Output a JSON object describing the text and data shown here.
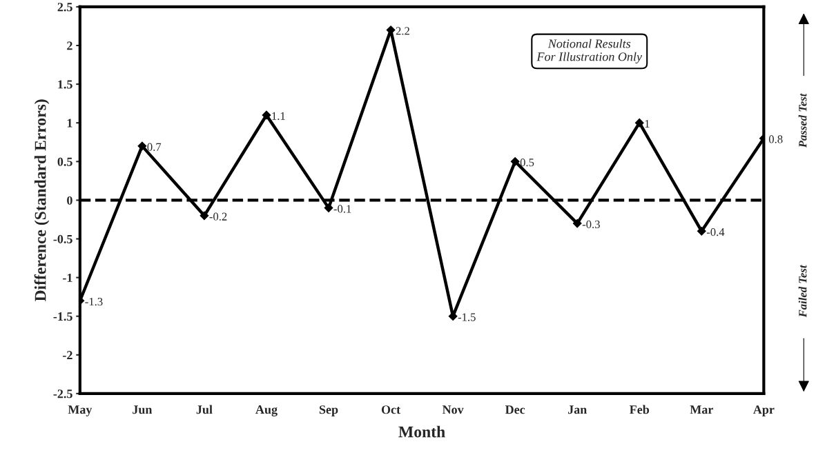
{
  "chart_data": {
    "type": "line",
    "xlabel": "Month",
    "ylabel": "Difference (Standard Errors)",
    "categories": [
      "May",
      "Jun",
      "Jul",
      "Aug",
      "Sep",
      "Oct",
      "Nov",
      "Dec",
      "Jan",
      "Feb",
      "Mar",
      "Apr"
    ],
    "values": [
      -1.3,
      0.7,
      -0.2,
      1.1,
      -0.1,
      2.2,
      -1.5,
      0.5,
      -0.3,
      1,
      -0.4,
      0.8
    ],
    "color": "#000000",
    "marker": "diamond",
    "line_style": "solid",
    "data_labels": true,
    "ylim": [
      -2.5,
      2.5
    ],
    "yticks": [
      2.5,
      2,
      1.5,
      1,
      0.5,
      0,
      -0.5,
      -1,
      -1.5,
      -2,
      -2.5
    ],
    "ref_lines": [
      {
        "axis": "y",
        "value": 0,
        "color": "#000000",
        "line_style": "dashed"
      }
    ],
    "annotations": [
      "Notional Results\nFor Illustration Only",
      "Passed Test",
      "Failed Test"
    ],
    "grid": false,
    "legend": false
  }
}
